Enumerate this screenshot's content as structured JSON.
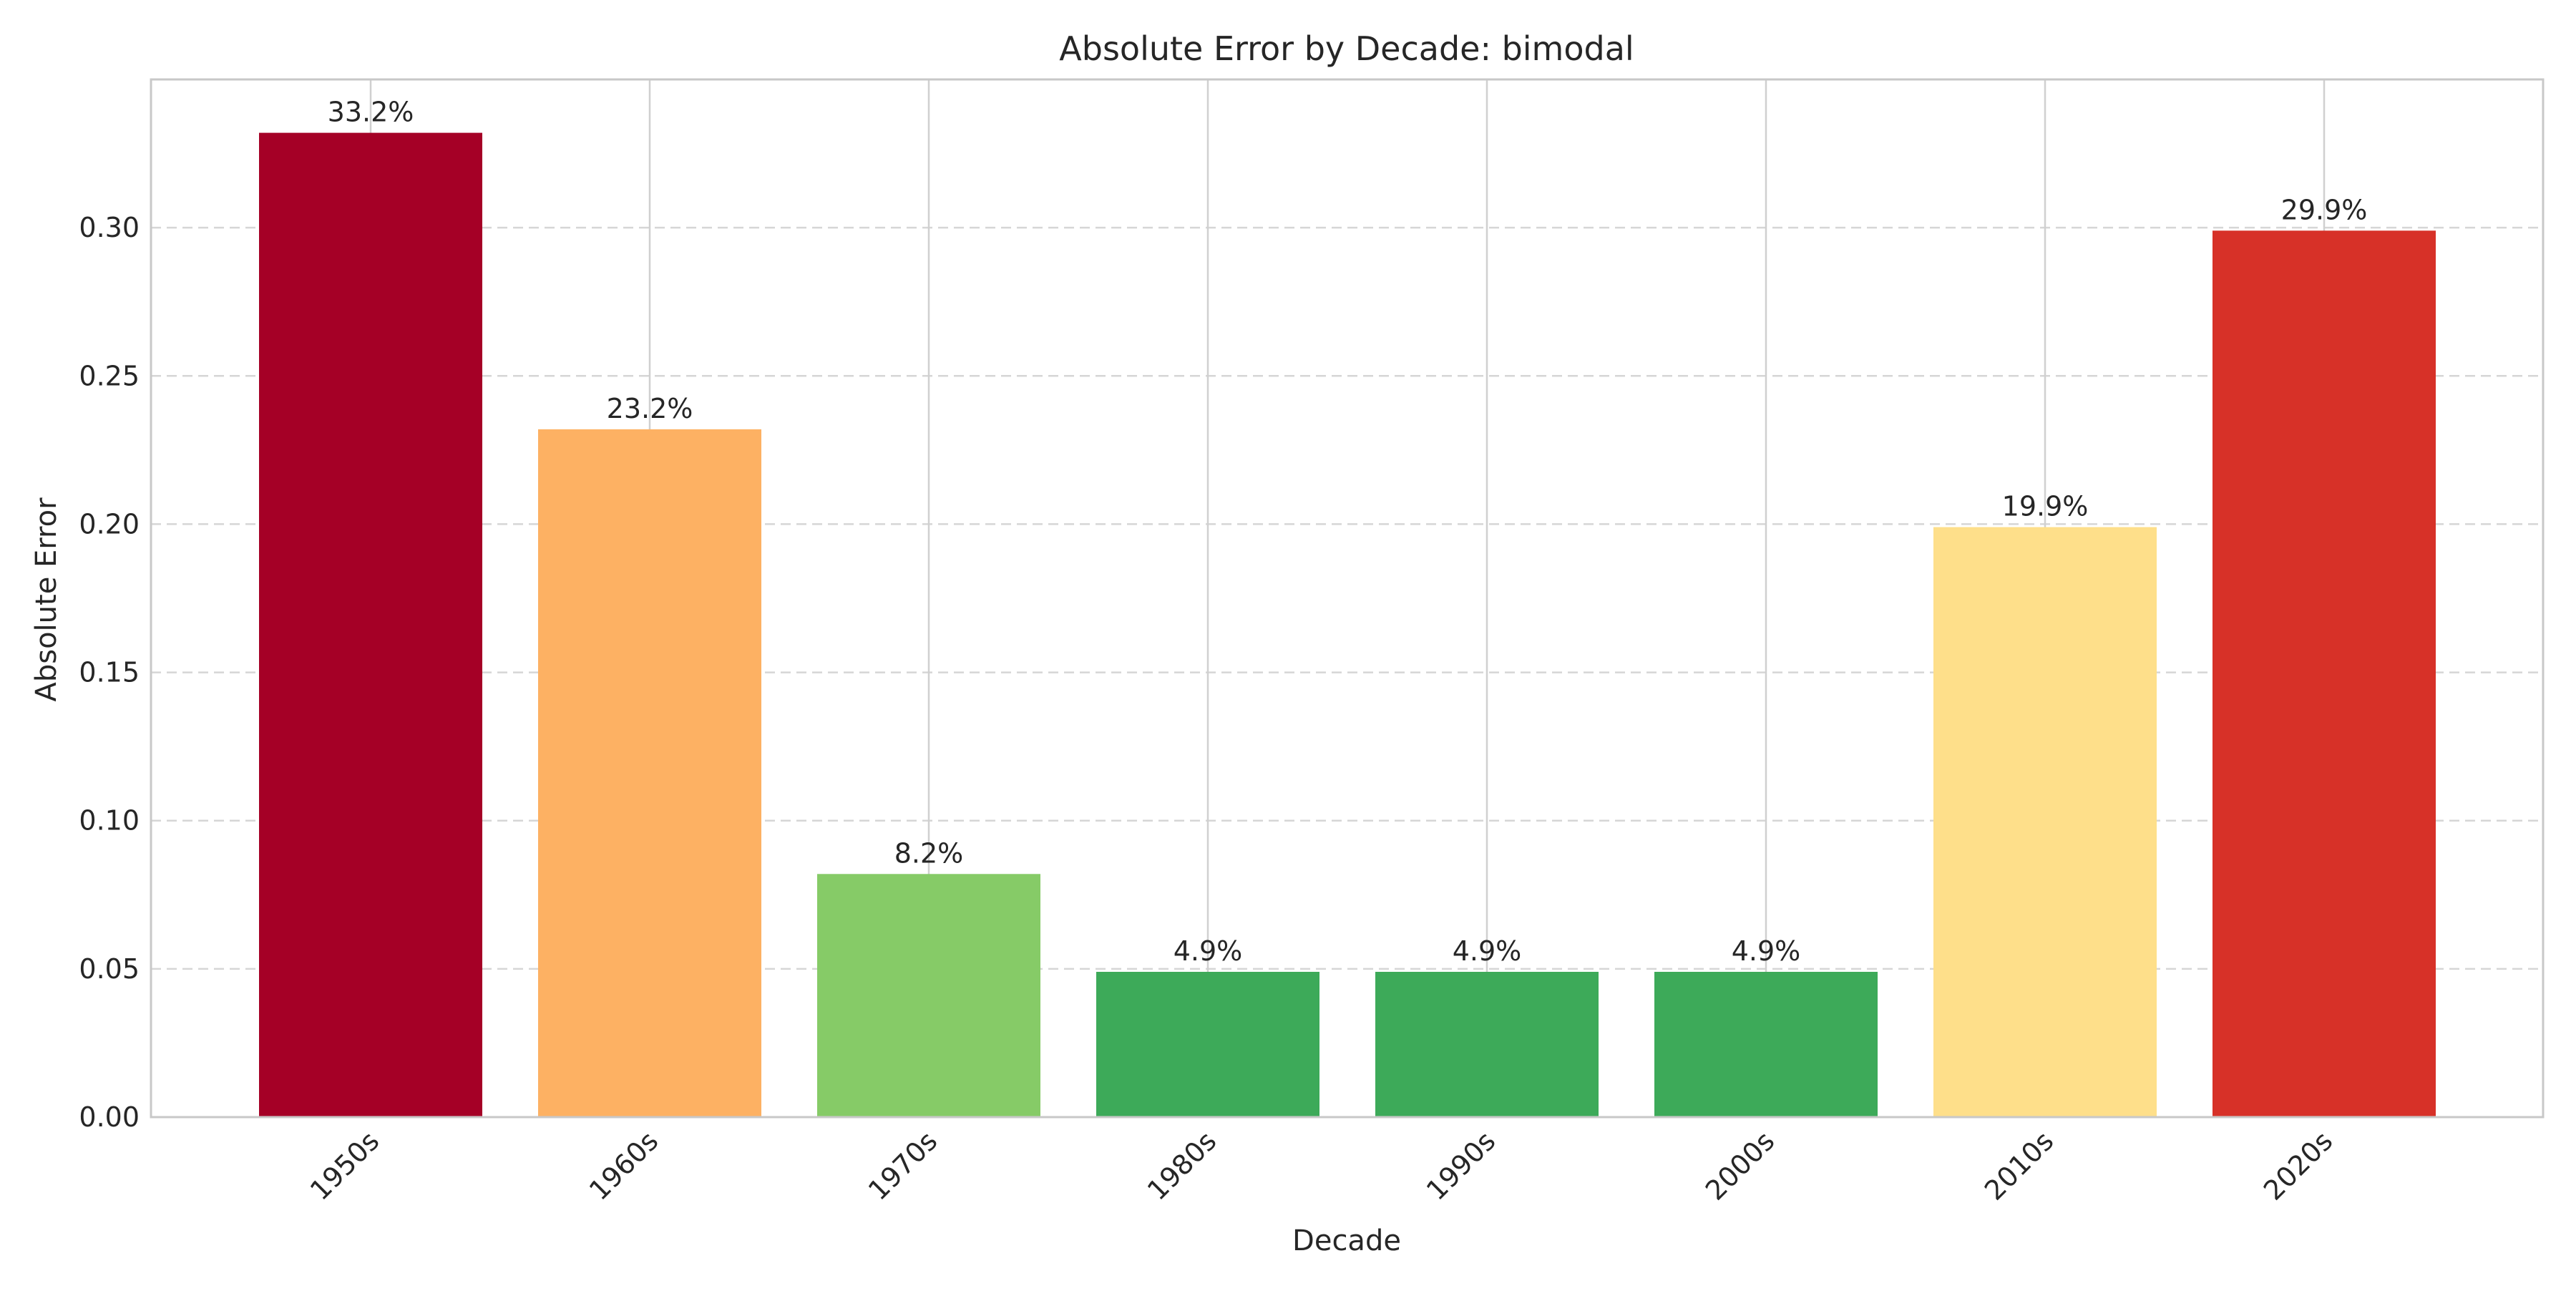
{
  "chart_data": {
    "type": "bar",
    "title": "Absolute Error by Decade: bimodal",
    "xlabel": "Decade",
    "ylabel": "Absolute Error",
    "categories": [
      "1950s",
      "1960s",
      "1970s",
      "1980s",
      "1990s",
      "2000s",
      "2010s",
      "2020s"
    ],
    "values": [
      0.332,
      0.232,
      0.082,
      0.049,
      0.049,
      0.049,
      0.199,
      0.299
    ],
    "data_labels": [
      "33.2%",
      "23.2%",
      "8.2%",
      "4.9%",
      "4.9%",
      "4.9%",
      "19.9%",
      "29.9%"
    ],
    "colors": [
      "#a50026",
      "#fdb163",
      "#86cb67",
      "#3daa59",
      "#3daa59",
      "#3daa59",
      "#fedf8a",
      "#d73128"
    ],
    "ylim": [
      0,
      0.35
    ],
    "yticks": [
      0.0,
      0.05,
      0.1,
      0.15,
      0.2,
      0.25,
      0.3
    ],
    "ytick_labels": [
      "0.00",
      "0.05",
      "0.10",
      "0.15",
      "0.20",
      "0.25",
      "0.30"
    ],
    "xtick_rotation": 45,
    "grid": true,
    "legend": "none"
  }
}
